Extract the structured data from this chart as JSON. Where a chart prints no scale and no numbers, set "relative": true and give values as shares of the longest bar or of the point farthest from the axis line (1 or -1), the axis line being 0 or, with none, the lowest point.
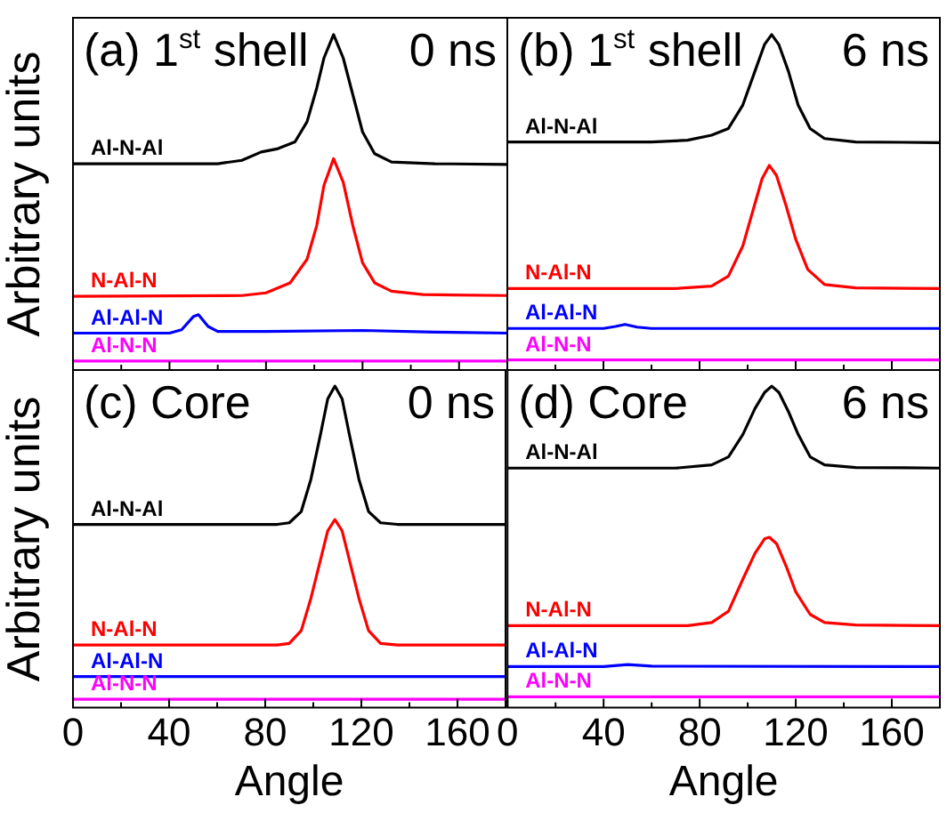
{
  "chart_data": [
    {
      "type": "line",
      "title": "(a) 1$^{st}$ shell",
      "annotations": [
        "0 ns"
      ],
      "ylabel": "Arbitrary units",
      "relative": true,
      "marker": "none",
      "tick_labels": false,
      "xlim": [
        0,
        180
      ],
      "xticks": [
        0,
        {
          "value": 20,
          "label": null
        },
        40,
        {
          "value": 60,
          "label": null
        },
        80,
        {
          "value": 100,
          "label": null
        },
        120,
        {
          "value": 140,
          "label": null
        },
        160,
        {
          "value": 180,
          "label": null
        }
      ],
      "series": [
        {
          "name": "Al-N-Al",
          "color": "#000000",
          "x": [
            0,
            60,
            70,
            78,
            85,
            92,
            97,
            101,
            104,
            108,
            112,
            116,
            120,
            125,
            132,
            150,
            180
          ],
          "values": [
            0.615,
            0.615,
            0.625,
            0.65,
            0.66,
            0.68,
            0.74,
            0.84,
            0.93,
            1,
            0.93,
            0.82,
            0.71,
            0.645,
            0.62,
            0.615,
            0.613
          ]
        },
        {
          "name": "N-Al-N",
          "color": "#ff0000",
          "x": [
            0,
            70,
            80,
            90,
            97,
            101,
            104,
            108,
            112,
            116,
            120,
            125,
            132,
            145,
            180
          ],
          "values": [
            0.22,
            0.222,
            0.23,
            0.26,
            0.33,
            0.43,
            0.55,
            0.63,
            0.56,
            0.43,
            0.32,
            0.26,
            0.235,
            0.225,
            0.222
          ]
        },
        {
          "name": "Al-Al-N",
          "color": "#0000ff",
          "x": [
            0,
            40,
            45,
            50,
            52,
            56,
            60,
            80,
            120,
            150,
            180
          ],
          "values": [
            0.11,
            0.11,
            0.12,
            0.16,
            0.165,
            0.13,
            0.115,
            0.115,
            0.118,
            0.113,
            0.11
          ]
        },
        {
          "name": "Al-N-N",
          "color": "#ff00ff",
          "x": [
            0,
            180
          ],
          "values": [
            0.027,
            0.027
          ]
        }
      ]
    },
    {
      "type": "line",
      "title": "(b) 1$^{st}$ shell",
      "annotations": [
        "6 ns"
      ],
      "relative": true,
      "marker": "none",
      "tick_labels": false,
      "xlim": [
        0,
        180
      ],
      "xticks": [
        0,
        {
          "value": 20,
          "label": null
        },
        40,
        {
          "value": 60,
          "label": null
        },
        80,
        {
          "value": 100,
          "label": null
        },
        120,
        {
          "value": 140,
          "label": null
        },
        160,
        {
          "value": 180,
          "label": null
        }
      ],
      "series": [
        {
          "name": "Al-N-Al",
          "color": "#000000",
          "x": [
            0,
            60,
            75,
            85,
            92,
            98,
            103,
            107,
            110,
            113,
            117,
            121,
            126,
            132,
            145,
            180
          ],
          "values": [
            0.68,
            0.68,
            0.685,
            0.7,
            0.72,
            0.79,
            0.89,
            0.97,
            1,
            0.97,
            0.89,
            0.79,
            0.72,
            0.69,
            0.68,
            0.678
          ]
        },
        {
          "name": "N-Al-N",
          "color": "#ff0000",
          "x": [
            0,
            70,
            85,
            92,
            98,
            102,
            106,
            109,
            112,
            116,
            120,
            125,
            132,
            145,
            180
          ],
          "values": [
            0.243,
            0.243,
            0.25,
            0.28,
            0.37,
            0.47,
            0.57,
            0.61,
            0.58,
            0.49,
            0.39,
            0.3,
            0.255,
            0.245,
            0.243
          ]
        },
        {
          "name": "Al-Al-N",
          "color": "#0000ff",
          "x": [
            0,
            40,
            45,
            49,
            54,
            60,
            180
          ],
          "values": [
            0.124,
            0.124,
            0.13,
            0.136,
            0.128,
            0.124,
            0.124
          ]
        },
        {
          "name": "Al-N-N",
          "color": "#ff00ff",
          "x": [
            0,
            180
          ],
          "values": [
            0.03,
            0.03
          ]
        }
      ]
    },
    {
      "type": "line",
      "title": "(c) Core",
      "annotations": [
        "0 ns"
      ],
      "ylabel": "Arbitrary units",
      "xlabel": "Angle",
      "relative": true,
      "marker": "none",
      "tick_labels": "x",
      "xlim": [
        0,
        180
      ],
      "xticks": [
        0,
        {
          "value": 20,
          "label": null
        },
        40,
        {
          "value": 60,
          "label": null
        },
        80,
        {
          "value": 100,
          "label": null
        },
        120,
        {
          "value": 140,
          "label": null
        },
        160,
        {
          "value": 180,
          "label": null
        }
      ],
      "series": [
        {
          "name": "Al-N-Al",
          "color": "#000000",
          "x": [
            0,
            85,
            90,
            95,
            99,
            103,
            106,
            109,
            112,
            115,
            119,
            123,
            128,
            135,
            180
          ],
          "values": [
            0.57,
            0.57,
            0.575,
            0.61,
            0.71,
            0.85,
            0.96,
            1,
            0.96,
            0.85,
            0.71,
            0.61,
            0.575,
            0.57,
            0.57
          ]
        },
        {
          "name": "N-Al-N",
          "color": "#ff0000",
          "x": [
            0,
            85,
            90,
            95,
            99,
            103,
            106,
            109,
            112,
            115,
            119,
            123,
            128,
            135,
            180
          ],
          "values": [
            0.195,
            0.195,
            0.2,
            0.24,
            0.34,
            0.46,
            0.55,
            0.585,
            0.55,
            0.46,
            0.34,
            0.24,
            0.2,
            0.195,
            0.195
          ]
        },
        {
          "name": "Al-Al-N",
          "color": "#0000ff",
          "x": [
            0,
            180
          ],
          "values": [
            0.097,
            0.097
          ]
        },
        {
          "name": "Al-N-N",
          "color": "#ff00ff",
          "x": [
            0,
            180
          ],
          "values": [
            0.026,
            0.026
          ]
        }
      ]
    },
    {
      "type": "line",
      "title": "(d) Core",
      "annotations": [
        "6 ns"
      ],
      "xlabel": "Angle",
      "relative": true,
      "marker": "none",
      "tick_labels": "x",
      "xlim": [
        0,
        180
      ],
      "xticks": [
        0,
        {
          "value": 20,
          "label": null
        },
        40,
        {
          "value": 60,
          "label": null
        },
        80,
        {
          "value": 100,
          "label": null
        },
        120,
        {
          "value": 140,
          "label": null
        },
        160,
        {
          "value": 180,
          "label": null
        }
      ],
      "series": [
        {
          "name": "Al-N-Al",
          "color": "#000000",
          "x": [
            0,
            70,
            85,
            92,
            98,
            103,
            107,
            110,
            113,
            117,
            121,
            126,
            132,
            145,
            180
          ],
          "values": [
            0.745,
            0.745,
            0.755,
            0.78,
            0.85,
            0.93,
            0.98,
            1,
            0.98,
            0.92,
            0.85,
            0.78,
            0.755,
            0.747,
            0.745
          ]
        },
        {
          "name": "N-Al-N",
          "color": "#ff0000",
          "x": [
            0,
            75,
            85,
            92,
            98,
            103,
            107,
            109,
            112,
            116,
            120,
            126,
            132,
            145,
            180
          ],
          "values": [
            0.255,
            0.255,
            0.265,
            0.3,
            0.4,
            0.48,
            0.525,
            0.53,
            0.51,
            0.44,
            0.36,
            0.29,
            0.265,
            0.257,
            0.255
          ]
        },
        {
          "name": "Al-Al-N",
          "color": "#0000ff",
          "x": [
            0,
            40,
            50,
            60,
            180
          ],
          "values": [
            0.128,
            0.128,
            0.134,
            0.129,
            0.128
          ]
        },
        {
          "name": "Al-N-N",
          "color": "#ff00ff",
          "x": [
            0,
            180
          ],
          "values": [
            0.034,
            0.034
          ]
        }
      ]
    }
  ]
}
